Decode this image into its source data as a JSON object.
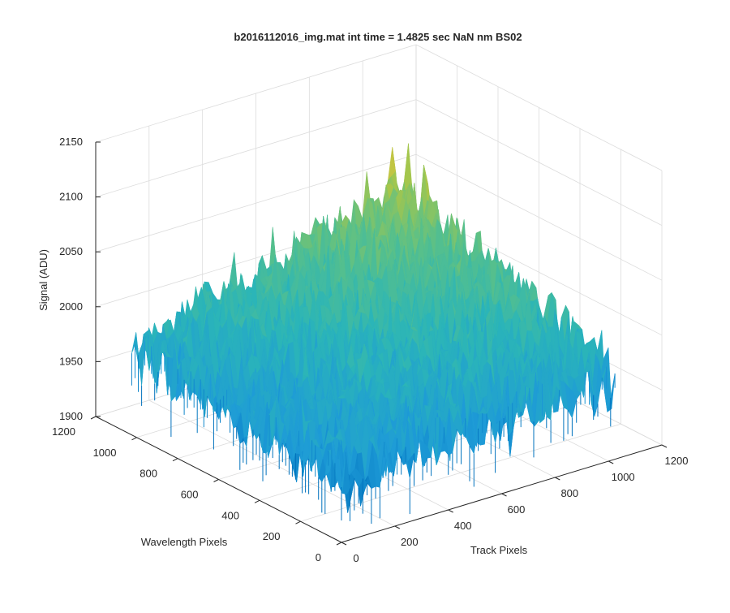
{
  "chart_data": {
    "type": "surface",
    "title": "b2016112016_img.mat int time = 1.4825 sec  NaN nm BS02",
    "xlabel": "Track Pixels",
    "ylabel": "Wavelength Pixels",
    "zlabel": "Signal (ADU)",
    "xlim": [
      0,
      1200
    ],
    "ylim": [
      0,
      1200
    ],
    "zlim": [
      1900,
      2150
    ],
    "xticks": [
      0,
      200,
      400,
      600,
      800,
      1000,
      1200
    ],
    "yticks": [
      0,
      200,
      400,
      600,
      800,
      1000,
      1200
    ],
    "zticks": [
      1900,
      1950,
      2000,
      2050,
      2100,
      2150
    ],
    "xtick_labels": [
      "0",
      "200",
      "400",
      "600",
      "800",
      "1000",
      "1200"
    ],
    "ytick_labels": [
      "0",
      "200",
      "400",
      "600",
      "800",
      "1000",
      "1200"
    ],
    "ztick_labels": [
      "1900",
      "1950",
      "2000",
      "2050",
      "2100",
      "2150"
    ],
    "data_extent": {
      "x": [
        0,
        1024
      ],
      "y": [
        0,
        1024
      ]
    },
    "surface_summary": {
      "corner_means": {
        "x0_y0": 1960,
        "x1024_y0": 1975,
        "x0_y1024": 1975,
        "x1024_y1024": 2050
      },
      "noise_amplitude": 25
    },
    "colormap": [
      "#0072bd",
      "#1e9bd7",
      "#2bb5b8",
      "#58c08a",
      "#a6c64b",
      "#e6c43a"
    ],
    "grid": true,
    "view": {
      "azimuth": -37.5,
      "elevation": 30
    }
  }
}
